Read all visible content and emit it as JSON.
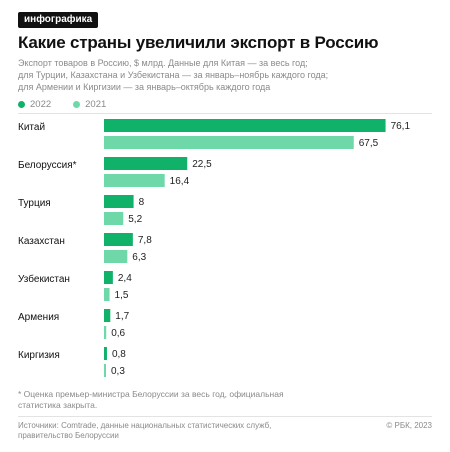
{
  "badge": "инфографика",
  "colors": {
    "y2022": "#10b26a",
    "y2021": "#6fd8a8"
  },
  "chart_data": {
    "type": "bar",
    "orientation": "horizontal",
    "title": "Какие страны увеличили экспорт в Россию",
    "subtitle_lines": [
      "Экспорт товаров в Россию, $ млрд. Данные для Китая — за весь год;",
      "для Турции, Казахстана и Узбекистана — за январь–ноябрь каждого года;",
      "для Армении и Киргизии — за январь–октябрь каждого года"
    ],
    "categories": [
      "Китай",
      "Белоруссия*",
      "Турция",
      "Казахстан",
      "Узбекистан",
      "Армения",
      "Киргизия"
    ],
    "series": [
      {
        "name": "2022",
        "values": [
          76.1,
          22.5,
          8,
          7.8,
          2.4,
          1.7,
          0.8
        ],
        "labels": [
          "76,1",
          "22,5",
          "8",
          "7,8",
          "2,4",
          "1,7",
          "0,8"
        ]
      },
      {
        "name": "2021",
        "values": [
          67.5,
          16.4,
          5.2,
          6.3,
          1.5,
          0.6,
          0.3
        ],
        "labels": [
          "67,5",
          "16,4",
          "5,2",
          "6,3",
          "1,5",
          "0,6",
          "0,3"
        ]
      }
    ],
    "xlim": [
      0,
      80
    ],
    "legend": "top-left",
    "grid": false
  },
  "footnote_lines": [
    "* Оценка премьер-министра Белоруссии за весь год, официальная",
    "статистика закрыта."
  ],
  "sources_lines": [
    "Источники: Comtrade, данные национальных статистических служб,",
    "правительство Белоруссии"
  ],
  "copyright": "© РБК, 2023"
}
